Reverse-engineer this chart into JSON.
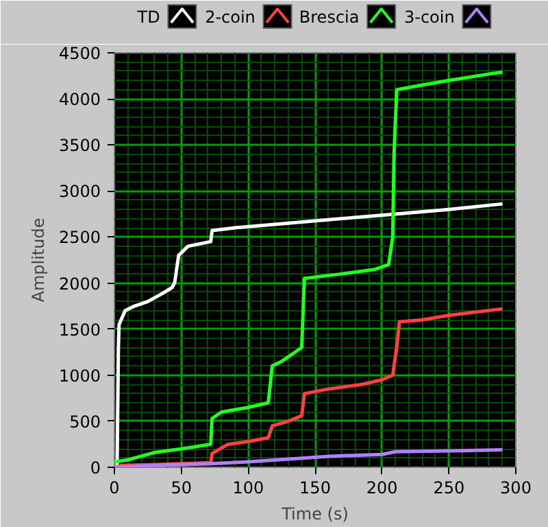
{
  "chart_data": {
    "type": "line",
    "xlabel": "Time (s)",
    "ylabel": "Amplitude",
    "xlim": [
      0,
      300
    ],
    "xticks": [
      0,
      {
        "value": 10,
        "label": null
      },
      {
        "value": 20,
        "label": null
      },
      {
        "value": 30,
        "label": null
      },
      {
        "value": 40,
        "label": null
      },
      50,
      {
        "value": 60,
        "label": null
      },
      {
        "value": 70,
        "label": null
      },
      {
        "value": 80,
        "label": null
      },
      {
        "value": 90,
        "label": null
      },
      100,
      {
        "value": 110,
        "label": null
      },
      {
        "value": 120,
        "label": null
      },
      {
        "value": 130,
        "label": null
      },
      {
        "value": 140,
        "label": null
      },
      150,
      {
        "value": 160,
        "label": null
      },
      {
        "value": 170,
        "label": null
      },
      {
        "value": 180,
        "label": null
      },
      {
        "value": 190,
        "label": null
      },
      200,
      {
        "value": 210,
        "label": null
      },
      {
        "value": 220,
        "label": null
      },
      {
        "value": 230,
        "label": null
      },
      {
        "value": 240,
        "label": null
      },
      250,
      {
        "value": 260,
        "label": null
      },
      {
        "value": 270,
        "label": null
      },
      {
        "value": 280,
        "label": null
      },
      {
        "value": 290,
        "label": null
      },
      300
    ],
    "ylim": [
      0,
      4500
    ],
    "yticks": [
      0,
      {
        "value": 100,
        "label": null
      },
      {
        "value": 200,
        "label": null
      },
      {
        "value": 300,
        "label": null
      },
      {
        "value": 400,
        "label": null
      },
      500,
      {
        "value": 600,
        "label": null
      },
      {
        "value": 700,
        "label": null
      },
      {
        "value": 800,
        "label": null
      },
      {
        "value": 900,
        "label": null
      },
      1000,
      {
        "value": 1100,
        "label": null
      },
      {
        "value": 1200,
        "label": null
      },
      {
        "value": 1300,
        "label": null
      },
      {
        "value": 1400,
        "label": null
      },
      1500,
      {
        "value": 1600,
        "label": null
      },
      {
        "value": 1700,
        "label": null
      },
      {
        "value": 1800,
        "label": null
      },
      {
        "value": 1900,
        "label": null
      },
      2000,
      {
        "value": 2100,
        "label": null
      },
      {
        "value": 2200,
        "label": null
      },
      {
        "value": 2300,
        "label": null
      },
      {
        "value": 2400,
        "label": null
      },
      2500,
      {
        "value": 2600,
        "label": null
      },
      {
        "value": 2700,
        "label": null
      },
      {
        "value": 2800,
        "label": null
      },
      {
        "value": 2900,
        "label": null
      },
      3000,
      {
        "value": 3100,
        "label": null
      },
      {
        "value": 3200,
        "label": null
      },
      {
        "value": 3300,
        "label": null
      },
      {
        "value": 3400,
        "label": null
      },
      3500,
      {
        "value": 3600,
        "label": null
      },
      {
        "value": 3700,
        "label": null
      },
      {
        "value": 3800,
        "label": null
      },
      {
        "value": 3900,
        "label": null
      },
      4000,
      {
        "value": 4100,
        "label": null
      },
      {
        "value": 4200,
        "label": null
      },
      {
        "value": 4300,
        "label": null
      },
      {
        "value": 4400,
        "label": null
      },
      4500
    ],
    "grid": true,
    "legend": "top",
    "marker": "none",
    "line_style": "solid",
    "series": [
      {
        "name": "TD",
        "color": "#ffffff",
        "x": [
          2,
          3,
          3.5,
          8,
          15,
          25,
          35,
          43,
          45,
          48,
          55,
          65,
          72,
          73,
          90,
          130,
          170,
          210,
          250,
          290
        ],
        "values": [
          0,
          1300,
          1550,
          1700,
          1750,
          1800,
          1880,
          1950,
          2000,
          2300,
          2400,
          2430,
          2450,
          2570,
          2600,
          2650,
          2700,
          2750,
          2800,
          2860
        ]
      },
      {
        "name": "2-coin",
        "color": "#ff4040",
        "x": [
          0,
          5,
          30,
          72,
          73,
          85,
          100,
          115,
          118,
          130,
          140,
          142,
          160,
          185,
          200,
          208,
          211,
          213,
          230,
          250,
          290
        ],
        "values": [
          0,
          20,
          30,
          50,
          150,
          250,
          280,
          320,
          450,
          500,
          560,
          800,
          850,
          900,
          950,
          1000,
          1300,
          1580,
          1600,
          1650,
          1720
        ]
      },
      {
        "name": "Brescia",
        "color": "#20ff20",
        "x": [
          0,
          10,
          20,
          30,
          50,
          72,
          73,
          80,
          100,
          115,
          118,
          125,
          135,
          140,
          142,
          170,
          195,
          205,
          208,
          209,
          211,
          230,
          250,
          280,
          290
        ],
        "values": [
          60,
          80,
          120,
          160,
          200,
          250,
          530,
          600,
          650,
          700,
          1100,
          1150,
          1250,
          1300,
          2050,
          2100,
          2150,
          2200,
          2500,
          3400,
          4100,
          4150,
          4200,
          4270,
          4290
        ]
      },
      {
        "name": "3-coin",
        "color": "#b080ff",
        "x": [
          0,
          30,
          72,
          100,
          142,
          160,
          200,
          210,
          260,
          290
        ],
        "values": [
          0,
          20,
          40,
          60,
          100,
          120,
          140,
          170,
          180,
          190
        ]
      }
    ]
  }
}
